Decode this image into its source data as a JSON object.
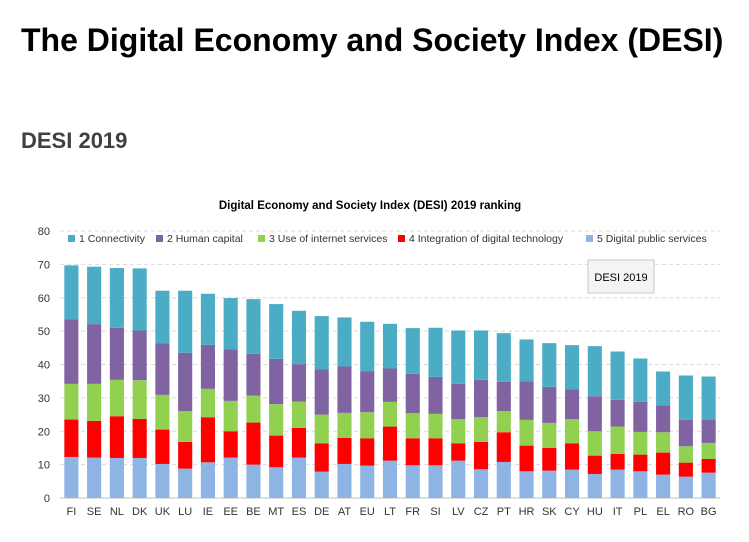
{
  "page": {
    "title": "The Digital Economy and Society Index (DESI)",
    "subtitle": "DESI 2019"
  },
  "chart_data": {
    "type": "bar",
    "stacked": true,
    "title": "Digital Economy and Society Index (DESI) 2019 ranking",
    "annotation": "DESI 2019",
    "ylim": [
      0,
      80
    ],
    "yticks": [
      0,
      10,
      20,
      30,
      40,
      50,
      60,
      70,
      80
    ],
    "grid": true,
    "legend_position": "top",
    "categories": [
      "FI",
      "SE",
      "NL",
      "DK",
      "UK",
      "LU",
      "IE",
      "EE",
      "BE",
      "MT",
      "ES",
      "DE",
      "AT",
      "EU",
      "LT",
      "FR",
      "SI",
      "LV",
      "CZ",
      "PT",
      "HR",
      "SK",
      "CY",
      "HU",
      "IT",
      "PL",
      "EL",
      "RO",
      "BG"
    ],
    "series": [
      {
        "name": "5 Digital public services",
        "color": "#8db4e2",
        "values": [
          12.3,
          12.1,
          12.0,
          12.0,
          10.2,
          8.8,
          10.7,
          12.1,
          10.0,
          9.2,
          12.1,
          7.9,
          10.2,
          9.7,
          11.2,
          9.8,
          9.8,
          11.2,
          8.6,
          10.8,
          8.0,
          8.2,
          8.5,
          7.2,
          8.5,
          8.0,
          7.0,
          6.4,
          7.6
        ]
      },
      {
        "name": "4 Integration of digital technology",
        "color": "#ff0000",
        "values": [
          11.2,
          11.0,
          12.5,
          11.7,
          10.3,
          8.0,
          13.5,
          7.9,
          12.6,
          9.5,
          8.9,
          8.5,
          7.8,
          8.2,
          10.2,
          8.1,
          8.1,
          5.2,
          8.2,
          8.9,
          7.7,
          6.8,
          7.9,
          5.5,
          4.7,
          5.0,
          6.6,
          4.2,
          4.1
        ]
      },
      {
        "name": "3 Use of internet services",
        "color": "#92d050",
        "values": [
          10.7,
          11.1,
          10.9,
          11.6,
          10.4,
          9.2,
          8.5,
          9.1,
          8.1,
          9.4,
          7.9,
          8.6,
          7.5,
          7.8,
          7.4,
          7.5,
          7.3,
          7.2,
          7.4,
          6.3,
          7.7,
          7.5,
          7.2,
          7.3,
          8.2,
          6.8,
          6.1,
          4.9,
          4.8
        ]
      },
      {
        "name": "2 Human capital",
        "color": "#8064a2",
        "values": [
          19.3,
          17.9,
          15.6,
          14.9,
          15.4,
          17.5,
          13.2,
          15.5,
          12.5,
          13.6,
          11.2,
          13.6,
          13.9,
          12.2,
          10.0,
          11.8,
          11.1,
          10.6,
          11.2,
          8.8,
          11.6,
          10.8,
          9.0,
          10.5,
          8.0,
          9.0,
          8.0,
          7.9,
          7.0
        ]
      },
      {
        "name": "1 Connectivity",
        "color": "#4bacc6",
        "values": [
          16.2,
          17.2,
          17.9,
          18.6,
          15.8,
          18.6,
          15.3,
          15.3,
          16.4,
          16.4,
          16.0,
          15.9,
          14.7,
          14.9,
          13.4,
          13.7,
          14.7,
          16.0,
          14.8,
          14.6,
          12.5,
          13.1,
          13.2,
          15.0,
          14.5,
          13.0,
          10.2,
          13.3,
          12.9
        ]
      }
    ]
  }
}
